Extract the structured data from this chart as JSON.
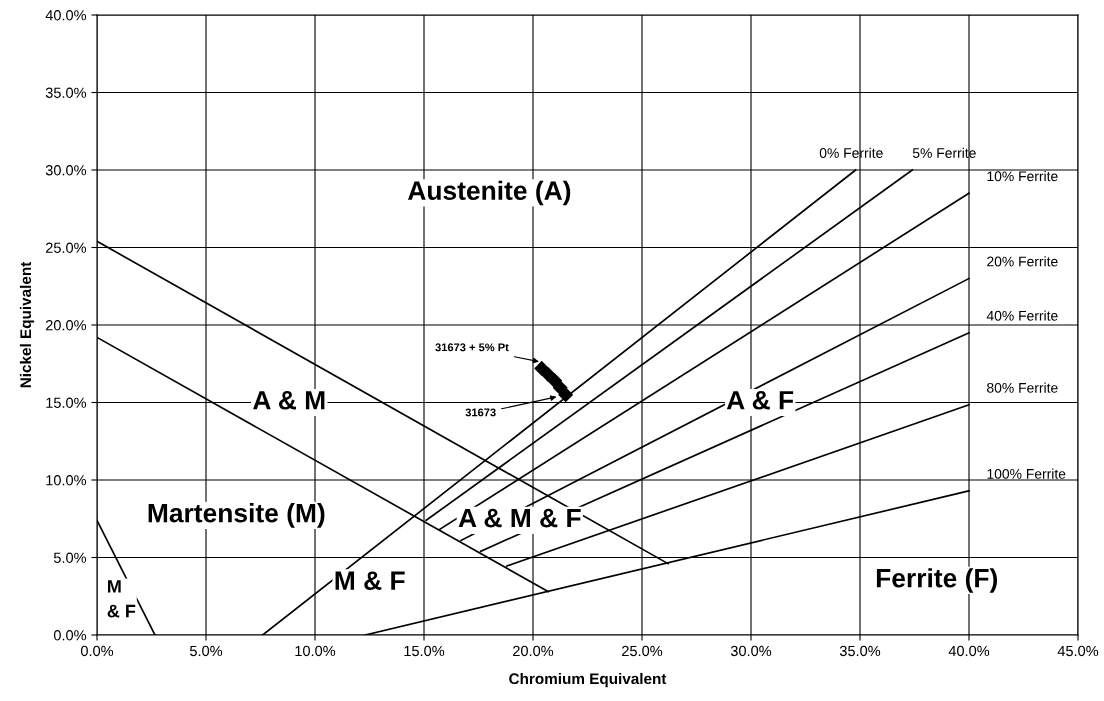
{
  "chart_data": {
    "type": "line",
    "xlabel": "Chromium Equivalent",
    "ylabel": "Nickel Equivalent",
    "xlim": [
      0,
      45
    ],
    "ylim": [
      0,
      40
    ],
    "xticks": [
      {
        "value": 0,
        "label": "0.0%"
      },
      {
        "value": 5,
        "label": "5.0%"
      },
      {
        "value": 10,
        "label": "10.0%"
      },
      {
        "value": 15,
        "label": "15.0%"
      },
      {
        "value": 20,
        "label": "20.0%"
      },
      {
        "value": 25,
        "label": "25.0%"
      },
      {
        "value": 30,
        "label": "30.0%"
      },
      {
        "value": 35,
        "label": "35.0%"
      },
      {
        "value": 40,
        "label": "40.0%"
      },
      {
        "value": 45,
        "label": "45.0%"
      }
    ],
    "yticks": [
      {
        "value": 0,
        "label": "0.0%"
      },
      {
        "value": 5,
        "label": "5.0%"
      },
      {
        "value": 10,
        "label": "10.0%"
      },
      {
        "value": 15,
        "label": "15.0%"
      },
      {
        "value": 20,
        "label": "20.0%"
      },
      {
        "value": 25,
        "label": "25.0%"
      },
      {
        "value": 30,
        "label": "30.0%"
      },
      {
        "value": 35,
        "label": "35.0%"
      },
      {
        "value": 40,
        "label": "40.0%"
      }
    ],
    "grid": true,
    "marker": "none",
    "line_style": "solid",
    "series": [
      {
        "name": "0% Ferrite",
        "color": "#000000",
        "x": [
          7.6,
          34.8
        ],
        "values": [
          0,
          30.0
        ]
      },
      {
        "name": "5% Ferrite",
        "color": "#000000",
        "x": [
          15.1,
          37.4
        ],
        "values": [
          7.4,
          30.0
        ]
      },
      {
        "name": "10% Ferrite",
        "color": "#000000",
        "x": [
          15.7,
          40
        ],
        "values": [
          6.8,
          28.5
        ]
      },
      {
        "name": "20% Ferrite",
        "color": "#000000",
        "x": [
          16.7,
          40
        ],
        "values": [
          6.1,
          23.0
        ]
      },
      {
        "name": "40% Ferrite",
        "color": "#000000",
        "x": [
          17.6,
          40
        ],
        "values": [
          5.4,
          19.5
        ]
      },
      {
        "name": "80% Ferrite",
        "color": "#000000",
        "x": [
          18.8,
          40
        ],
        "values": [
          4.45,
          14.85
        ]
      },
      {
        "name": "100% Ferrite",
        "color": "#000000",
        "x": [
          12.3,
          40
        ],
        "values": [
          0,
          9.3
        ]
      },
      {
        "color": "#000000",
        "x": [
          0,
          26.2
        ],
        "values": [
          25.4,
          4.6
        ]
      },
      {
        "color": "#000000",
        "x": [
          0,
          20.7
        ],
        "values": [
          19.2,
          2.8
        ]
      },
      {
        "color": "#000000",
        "x": [
          0,
          2.66
        ],
        "values": [
          7.4,
          0
        ]
      },
      {
        "type": "scatter",
        "marker": "diamond",
        "color": "#000000",
        "x": [
          20.4,
          20.7,
          21.0,
          21.25,
          21.5
        ],
        "values": [
          17.2,
          16.8,
          16.4,
          15.95,
          15.5
        ]
      }
    ],
    "annotations": [
      {
        "text": "31673 + 5% Pt",
        "x": 20.4,
        "y": 17.6
      },
      {
        "text": "31673",
        "x": 21.2,
        "y": 15.4
      },
      "Austenite (A)",
      "A & M",
      "A & F",
      "Martensite (M)",
      "A & M & F",
      "M & F",
      "Ferrite (F)",
      "M\n& F"
    ]
  }
}
